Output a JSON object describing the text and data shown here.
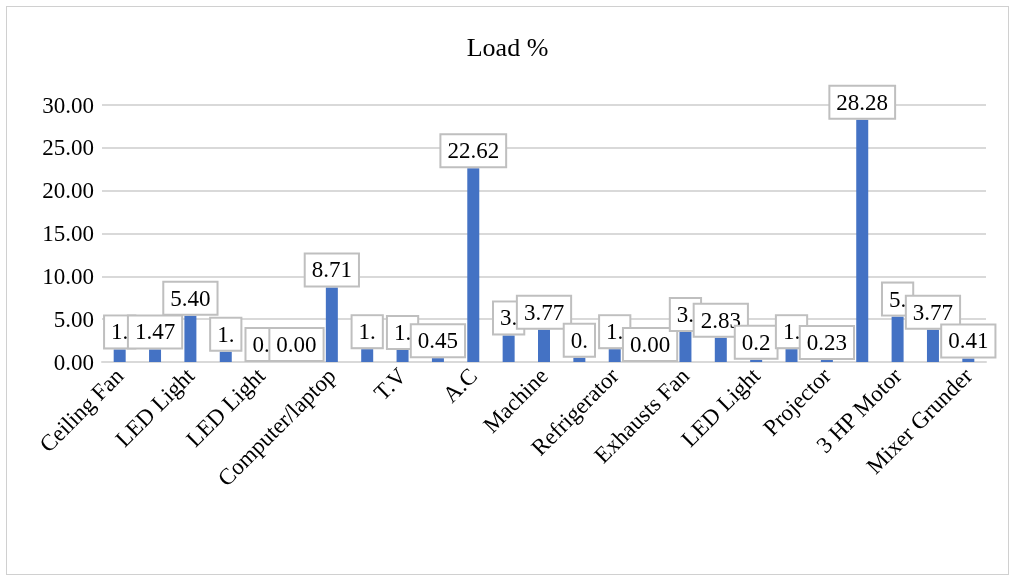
{
  "chart_data": {
    "type": "bar",
    "title": "Load %",
    "categories": [
      "Ceiling Fan",
      null,
      "LED Light",
      null,
      "LED Light",
      null,
      "Computer/laptop",
      null,
      "T.V",
      null,
      "A.C",
      null,
      "Machine",
      null,
      "Refrigerator",
      null,
      "Exhausts Fan",
      null,
      "LED Light",
      null,
      "Projector",
      null,
      "3 HP Motor",
      null,
      "Mixer Grunder"
    ],
    "values": [
      1.47,
      1.47,
      5.4,
      1.2,
      0.0,
      0.0,
      8.71,
      1.5,
      1.4,
      0.45,
      22.62,
      3.1,
      3.77,
      0.5,
      1.5,
      0.0,
      3.5,
      2.83,
      0.25,
      1.5,
      0.23,
      28.28,
      5.3,
      3.77,
      0.41
    ],
    "value_labels": [
      "1.",
      "1.47",
      "5.40",
      "1.",
      "0.",
      "0.00",
      "8.71",
      "1.",
      "1.",
      "0.45",
      "22.62",
      "3.",
      "3.77",
      "0.",
      "1.",
      "0.00",
      "3.",
      "2.83",
      "0.2",
      "1.",
      "0.23",
      "28.28",
      "5.",
      "3.77",
      "0.41"
    ],
    "color": "#4472c4",
    "ylim": [
      0,
      30
    ],
    "yticks": [
      {
        "value": 0,
        "label": "0.00"
      },
      {
        "value": 5,
        "label": "5.00"
      },
      {
        "value": 10,
        "label": "10.00"
      },
      {
        "value": 15,
        "label": "15.00"
      },
      {
        "value": 20,
        "label": "20.00"
      },
      {
        "value": 25,
        "label": "25.00"
      },
      {
        "value": 30,
        "label": "30.00"
      }
    ],
    "grid": "y"
  }
}
